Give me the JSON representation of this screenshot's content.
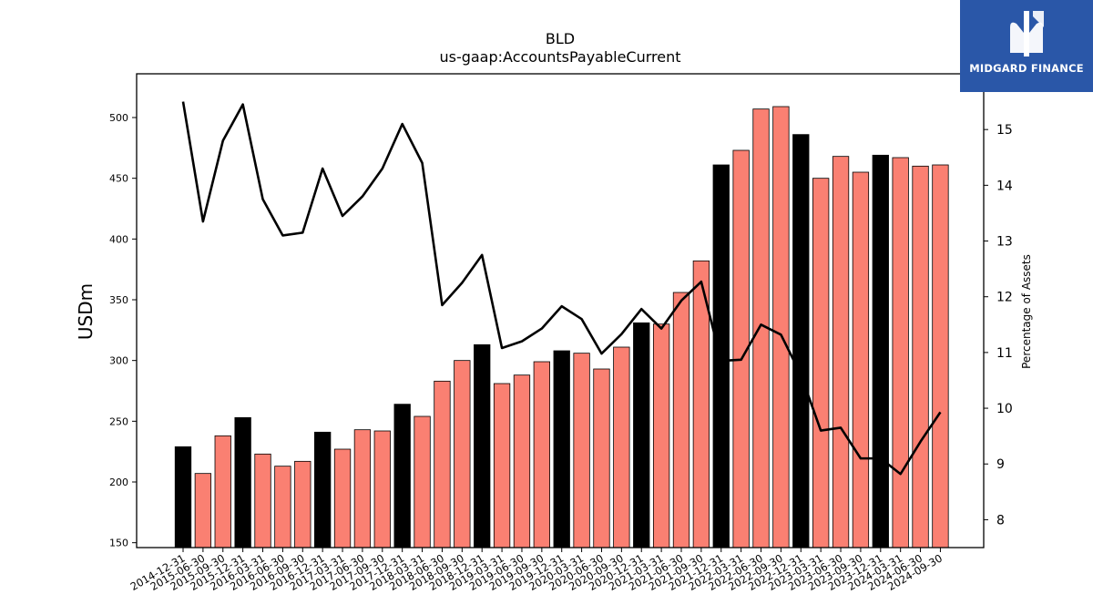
{
  "chart_data": {
    "type": "bar",
    "title": "BLD",
    "subtitle": "us-gaap:AccountsPayableCurrent",
    "ylabel": "USDm",
    "y2label": "Percentage of Assets",
    "ylim": [
      146,
      536
    ],
    "y2lim": [
      7.5,
      16.0
    ],
    "yticks": [
      150,
      200,
      250,
      300,
      350,
      400,
      450,
      500
    ],
    "y2ticks": [
      8,
      9,
      10,
      11,
      12,
      13,
      14,
      15
    ],
    "categories": [
      "2014-12-31",
      "2015-06-30",
      "2015-09-30",
      "2015-12-31",
      "2016-03-31",
      "2016-06-30",
      "2016-09-30",
      "2016-12-31",
      "2017-03-31",
      "2017-06-30",
      "2017-09-30",
      "2017-12-31",
      "2018-03-31",
      "2018-06-30",
      "2018-09-30",
      "2018-12-31",
      "2019-03-31",
      "2019-06-30",
      "2019-09-30",
      "2019-12-31",
      "2020-03-31",
      "2020-06-30",
      "2020-09-30",
      "2020-12-31",
      "2021-03-31",
      "2021-06-30",
      "2021-09-30",
      "2021-12-31",
      "2022-03-31",
      "2022-06-30",
      "2022-09-30",
      "2022-12-31",
      "2023-03-31",
      "2023-06-30",
      "2023-09-30",
      "2023-12-31",
      "2024-03-31",
      "2024-06-30",
      "2024-09-30"
    ],
    "series": [
      {
        "kind": "bar",
        "axis": "left",
        "values": [
          229,
          207,
          238,
          253,
          223,
          213,
          217,
          241,
          227,
          243,
          242,
          264,
          254,
          283,
          300,
          313,
          281,
          288,
          299,
          308,
          306,
          293,
          311,
          331,
          330,
          356,
          382,
          461,
          473,
          507,
          509,
          486,
          450,
          468,
          455,
          469,
          467,
          460,
          461
        ]
      },
      {
        "kind": "line",
        "axis": "right",
        "values": [
          15.5,
          13.35,
          14.8,
          15.45,
          13.75,
          13.1,
          13.15,
          14.3,
          13.45,
          13.8,
          14.3,
          15.1,
          14.4,
          11.85,
          12.25,
          12.75,
          11.08,
          11.2,
          11.43,
          11.83,
          11.6,
          10.98,
          11.33,
          11.78,
          11.43,
          11.93,
          12.27,
          10.85,
          10.87,
          11.5,
          11.32,
          10.6,
          9.6,
          9.65,
          9.1,
          9.1,
          8.82,
          9.4,
          9.93
        ],
        "color": "#000000"
      }
    ],
    "year_end_color": "#000000",
    "quarter_color": "#fa8072",
    "grid": false
  },
  "logo": {
    "text": "MIDGARD FINANCE",
    "background": "#2a57a8"
  }
}
